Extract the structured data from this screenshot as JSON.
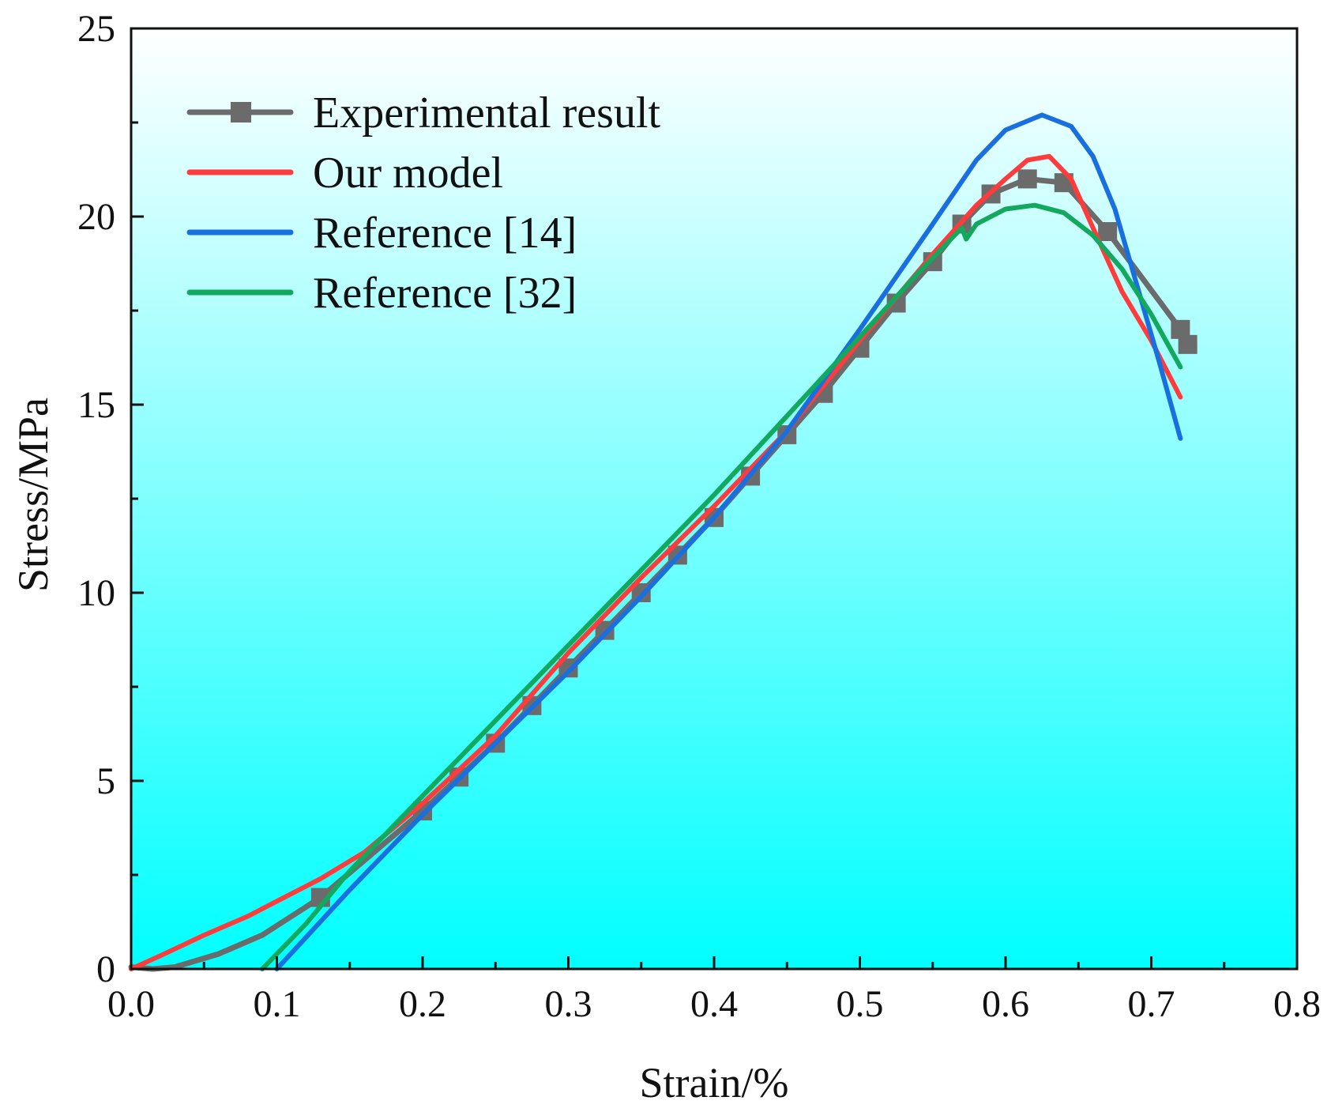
{
  "chart_data": {
    "type": "line",
    "title": "",
    "xlabel": "Strain/%",
    "ylabel": "Stress/MPa",
    "xlim": [
      0.0,
      0.8
    ],
    "ylim": [
      0,
      25
    ],
    "xticks": [
      "0.0",
      "0.1",
      "0.2",
      "0.3",
      "0.4",
      "0.5",
      "0.6",
      "0.7",
      "0.8"
    ],
    "yticks": [
      "0",
      "5",
      "10",
      "15",
      "20",
      "25"
    ],
    "legend_position": "top-left",
    "grid": false,
    "background_gradient": [
      "#ffffff",
      "#00ffff"
    ],
    "series": [
      {
        "name": "Experimental result",
        "color": "#6b6b6b",
        "marker": "square",
        "x": [
          0.0,
          0.015,
          0.03,
          0.06,
          0.09,
          0.13,
          0.2,
          0.225,
          0.25,
          0.275,
          0.3,
          0.325,
          0.35,
          0.375,
          0.4,
          0.425,
          0.45,
          0.475,
          0.5,
          0.525,
          0.55,
          0.57,
          0.59,
          0.615,
          0.64,
          0.67,
          0.72,
          0.725
        ],
        "y": [
          0.05,
          0.0,
          0.05,
          0.4,
          0.9,
          1.9,
          4.2,
          5.1,
          6.0,
          7.0,
          8.0,
          9.0,
          10.0,
          11.0,
          12.0,
          13.1,
          14.2,
          15.3,
          16.5,
          17.7,
          18.8,
          19.8,
          20.6,
          21.0,
          20.9,
          19.6,
          17.0,
          16.6
        ]
      },
      {
        "name": "Our model",
        "color": "#ff3b3b",
        "marker": "none",
        "x": [
          0.0,
          0.02,
          0.05,
          0.08,
          0.1,
          0.13,
          0.16,
          0.2,
          0.25,
          0.3,
          0.35,
          0.4,
          0.45,
          0.5,
          0.55,
          0.58,
          0.6,
          0.615,
          0.63,
          0.645,
          0.66,
          0.68,
          0.7,
          0.72
        ],
        "y": [
          0.0,
          0.35,
          0.9,
          1.4,
          1.8,
          2.4,
          3.1,
          4.4,
          6.2,
          8.4,
          10.4,
          12.3,
          14.3,
          16.7,
          19.0,
          20.3,
          21.0,
          21.5,
          21.6,
          21.0,
          19.7,
          18.0,
          16.7,
          15.2
        ]
      },
      {
        "name": "Reference [14]",
        "color": "#1a6fe0",
        "marker": "none",
        "x": [
          0.1,
          0.15,
          0.2,
          0.25,
          0.3,
          0.35,
          0.4,
          0.45,
          0.5,
          0.55,
          0.58,
          0.6,
          0.625,
          0.645,
          0.66,
          0.675,
          0.69,
          0.705,
          0.72
        ],
        "y": [
          0.0,
          2.1,
          4.1,
          6.0,
          7.9,
          9.9,
          12.0,
          14.3,
          17.0,
          19.8,
          21.5,
          22.3,
          22.7,
          22.4,
          21.6,
          20.2,
          18.2,
          16.2,
          14.1
        ]
      },
      {
        "name": "Reference [32]",
        "color": "#12a85e",
        "marker": "none",
        "x": [
          0.09,
          0.12,
          0.15,
          0.2,
          0.25,
          0.3,
          0.35,
          0.4,
          0.45,
          0.5,
          0.54,
          0.57,
          0.573,
          0.58,
          0.6,
          0.62,
          0.64,
          0.66,
          0.68,
          0.7,
          0.72
        ],
        "y": [
          0.0,
          1.2,
          2.6,
          4.6,
          6.6,
          8.6,
          10.6,
          12.6,
          14.7,
          16.8,
          18.5,
          19.7,
          19.4,
          19.8,
          20.2,
          20.3,
          20.1,
          19.5,
          18.6,
          17.4,
          16.0
        ]
      }
    ]
  }
}
